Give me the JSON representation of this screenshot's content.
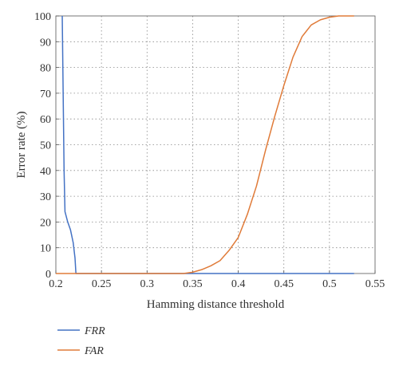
{
  "chart_data": {
    "type": "line",
    "title": "",
    "xlabel": "Hamming distance threshold",
    "ylabel": "Error rate (%)",
    "xlim": [
      0.2,
      0.55
    ],
    "ylim": [
      0,
      100
    ],
    "x_ticks": [
      "0.2",
      "0.25",
      "0.3",
      "0.35",
      "0.4",
      "0.45",
      "0.5",
      "0.55"
    ],
    "y_ticks": [
      "0",
      "10",
      "20",
      "30",
      "40",
      "50",
      "60",
      "70",
      "80",
      "90",
      "100"
    ],
    "grid": true,
    "legend_position": "bottom-left",
    "series": [
      {
        "name": "FRR",
        "color": "#4472c4",
        "points": [
          [
            0.207,
            100
          ],
          [
            0.208,
            70
          ],
          [
            0.209,
            40
          ],
          [
            0.21,
            24
          ],
          [
            0.213,
            20
          ],
          [
            0.216,
            17
          ],
          [
            0.219,
            12
          ],
          [
            0.221,
            6
          ],
          [
            0.222,
            0
          ],
          [
            0.3,
            0
          ],
          [
            0.4,
            0
          ],
          [
            0.5,
            0
          ],
          [
            0.527,
            0
          ]
        ]
      },
      {
        "name": "FAR",
        "color": "#e07b39",
        "points": [
          [
            0.2,
            0
          ],
          [
            0.3,
            0
          ],
          [
            0.34,
            0
          ],
          [
            0.35,
            0.5
          ],
          [
            0.36,
            1.5
          ],
          [
            0.37,
            3
          ],
          [
            0.38,
            5
          ],
          [
            0.39,
            9
          ],
          [
            0.4,
            14
          ],
          [
            0.41,
            23
          ],
          [
            0.42,
            34
          ],
          [
            0.43,
            48
          ],
          [
            0.44,
            61
          ],
          [
            0.45,
            73
          ],
          [
            0.46,
            84
          ],
          [
            0.47,
            92
          ],
          [
            0.48,
            96.5
          ],
          [
            0.49,
            98.5
          ],
          [
            0.5,
            99.5
          ],
          [
            0.51,
            100
          ],
          [
            0.527,
            100
          ]
        ]
      }
    ]
  }
}
